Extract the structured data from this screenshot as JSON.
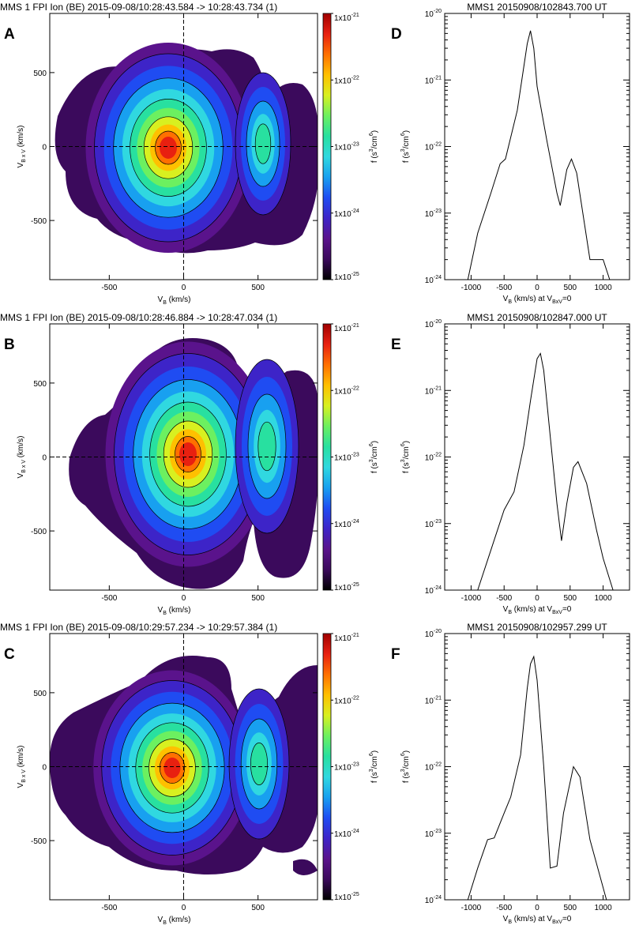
{
  "panels_left": [
    {
      "label": "A",
      "title": "MMS 1 FPI Ion (BE) 2015-09-08/10:28:43.584 -> 10:28:43.734 (1)"
    },
    {
      "label": "B",
      "title": "MMS 1 FPI Ion (BE) 2015-09-08/10:28:46.884 -> 10:28:47.034 (1)"
    },
    {
      "label": "C",
      "title": "MMS 1 FPI Ion (BE) 2015-09-08/10:29:57.234 -> 10:29:57.384 (1)"
    }
  ],
  "panels_right": [
    {
      "label": "D",
      "title": "MMS1 20150908/102843.700 UT"
    },
    {
      "label": "E",
      "title": "MMS1 20150908/102847.000 UT"
    },
    {
      "label": "F",
      "title": "MMS1 20150908/102957.299 UT"
    }
  ],
  "left_axes": {
    "xlabel_main": "V",
    "xlabel_sub": "B",
    "xlabel_rest": " (km/s)",
    "ylabel_main": "V",
    "ylabel_sub": "B x V",
    "ylabel_rest": " (km/s)",
    "xticks": [
      "-500",
      "0",
      "500"
    ],
    "yticks": [
      "-500",
      "0",
      "500"
    ]
  },
  "colorbar": {
    "label_main": "f (s",
    "label_sup1": "3",
    "label_mid": "/cm",
    "label_sup2": "6",
    "label_end": ")",
    "ticks": [
      {
        "base": "1x10",
        "exp": "-21"
      },
      {
        "base": "1x10",
        "exp": "-22"
      },
      {
        "base": "1x10",
        "exp": "-23"
      },
      {
        "base": "1x10",
        "exp": "-24"
      },
      {
        "base": "1x10",
        "exp": "-25"
      }
    ]
  },
  "right_axes": {
    "xlabel_main": "V",
    "xlabel_sub": "B",
    "xlabel_rest": " (km/s) at V",
    "xlabel_sub2": "BxV",
    "xlabel_end": "=0",
    "ylabel_main": "f (s",
    "ylabel_sup1": "3",
    "ylabel_mid": "/cm",
    "ylabel_sup2": "6",
    "ylabel_end": ")",
    "xticks": [
      "-1000",
      "-500",
      "0",
      "500",
      "1000"
    ],
    "yticks": [
      {
        "base": "10",
        "exp": "-20"
      },
      {
        "base": "10",
        "exp": "-21"
      },
      {
        "base": "10",
        "exp": "-22"
      },
      {
        "base": "10",
        "exp": "-23"
      },
      {
        "base": "10",
        "exp": "-24"
      }
    ]
  },
  "colors": {
    "cmap": [
      "#000000",
      "#3b0a5c",
      "#5a138c",
      "#3d24c8",
      "#1f4cf2",
      "#18a0f0",
      "#30d8e0",
      "#28e0a0",
      "#6cf060",
      "#d8f020",
      "#ffc000",
      "#ff7000",
      "#e82010",
      "#a00000"
    ]
  },
  "chart_data": [
    {
      "type": "heatmap",
      "panel": "A",
      "xlim": [
        -900,
        900
      ],
      "ylim": [
        -900,
        900
      ],
      "zlim": [
        1e-25,
        1e-21
      ],
      "z_scale": "log",
      "main_peak": {
        "vB": -100,
        "vBxV": 0,
        "f": 8e-22
      },
      "secondary_peak": {
        "vB": 520,
        "vBxV": -50,
        "f": 8e-23
      }
    },
    {
      "type": "heatmap",
      "panel": "B",
      "xlim": [
        -900,
        900
      ],
      "ylim": [
        -900,
        900
      ],
      "zlim": [
        1e-25,
        1e-21
      ],
      "z_scale": "log",
      "main_peak": {
        "vB": 30,
        "vBxV": 0,
        "f": 6e-22
      },
      "secondary_peak": {
        "vB": 600,
        "vBxV": 100,
        "f": 9e-23
      }
    },
    {
      "type": "heatmap",
      "panel": "C",
      "xlim": [
        -900,
        900
      ],
      "ylim": [
        -900,
        900
      ],
      "zlim": [
        1e-25,
        1e-21
      ],
      "z_scale": "log",
      "main_peak": {
        "vB": -80,
        "vBxV": -20,
        "f": 7e-22
      },
      "secondary_peak": {
        "vB": 560,
        "vBxV": 0,
        "f": 9e-23
      }
    },
    {
      "type": "line",
      "panel": "D",
      "y_scale": "log",
      "xlim": [
        -1400,
        1400
      ],
      "ylim": [
        1e-24,
        1e-20
      ],
      "x": [
        -1050,
        -900,
        -700,
        -560,
        -480,
        -300,
        -150,
        -100,
        -50,
        0,
        150,
        300,
        350,
        450,
        520,
        600,
        800,
        1000,
        1100
      ],
      "y": [
        1e-24,
        5e-24,
        2e-23,
        5.5e-23,
        6.5e-23,
        3.5e-22,
        3.5e-21,
        5.5e-21,
        3e-21,
        8e-22,
        1.2e-22,
        2e-23,
        1.3e-23,
        4.5e-23,
        6.5e-23,
        4e-23,
        2e-24,
        2e-24,
        1e-24
      ]
    },
    {
      "type": "line",
      "panel": "E",
      "y_scale": "log",
      "xlim": [
        -1400,
        1400
      ],
      "ylim": [
        1e-24,
        1e-20
      ],
      "x": [
        -900,
        -700,
        -500,
        -350,
        -200,
        -100,
        0,
        50,
        100,
        200,
        300,
        370,
        450,
        550,
        620,
        750,
        900,
        1000,
        1150
      ],
      "y": [
        1e-24,
        4e-24,
        1.6e-23,
        3e-23,
        1.5e-22,
        7e-22,
        3e-21,
        3.6e-21,
        2e-21,
        2e-22,
        2e-23,
        5.5e-24,
        2e-23,
        7e-23,
        8.5e-23,
        4e-23,
        8e-24,
        3e-24,
        1e-24
      ]
    },
    {
      "type": "line",
      "panel": "F",
      "y_scale": "log",
      "xlim": [
        -1400,
        1400
      ],
      "ylim": [
        1e-24,
        1e-20
      ],
      "x": [
        -1050,
        -900,
        -750,
        -650,
        -500,
        -400,
        -250,
        -150,
        -100,
        -50,
        0,
        100,
        200,
        300,
        400,
        550,
        650,
        800,
        1050
      ],
      "y": [
        1e-24,
        3e-24,
        8e-24,
        8.5e-24,
        2e-23,
        3.5e-23,
        1.5e-22,
        1.5e-21,
        3.5e-21,
        4.5e-21,
        2e-21,
        1e-22,
        3e-24,
        3.2e-24,
        2e-23,
        1e-22,
        7e-23,
        8e-24,
        1e-24
      ]
    }
  ]
}
